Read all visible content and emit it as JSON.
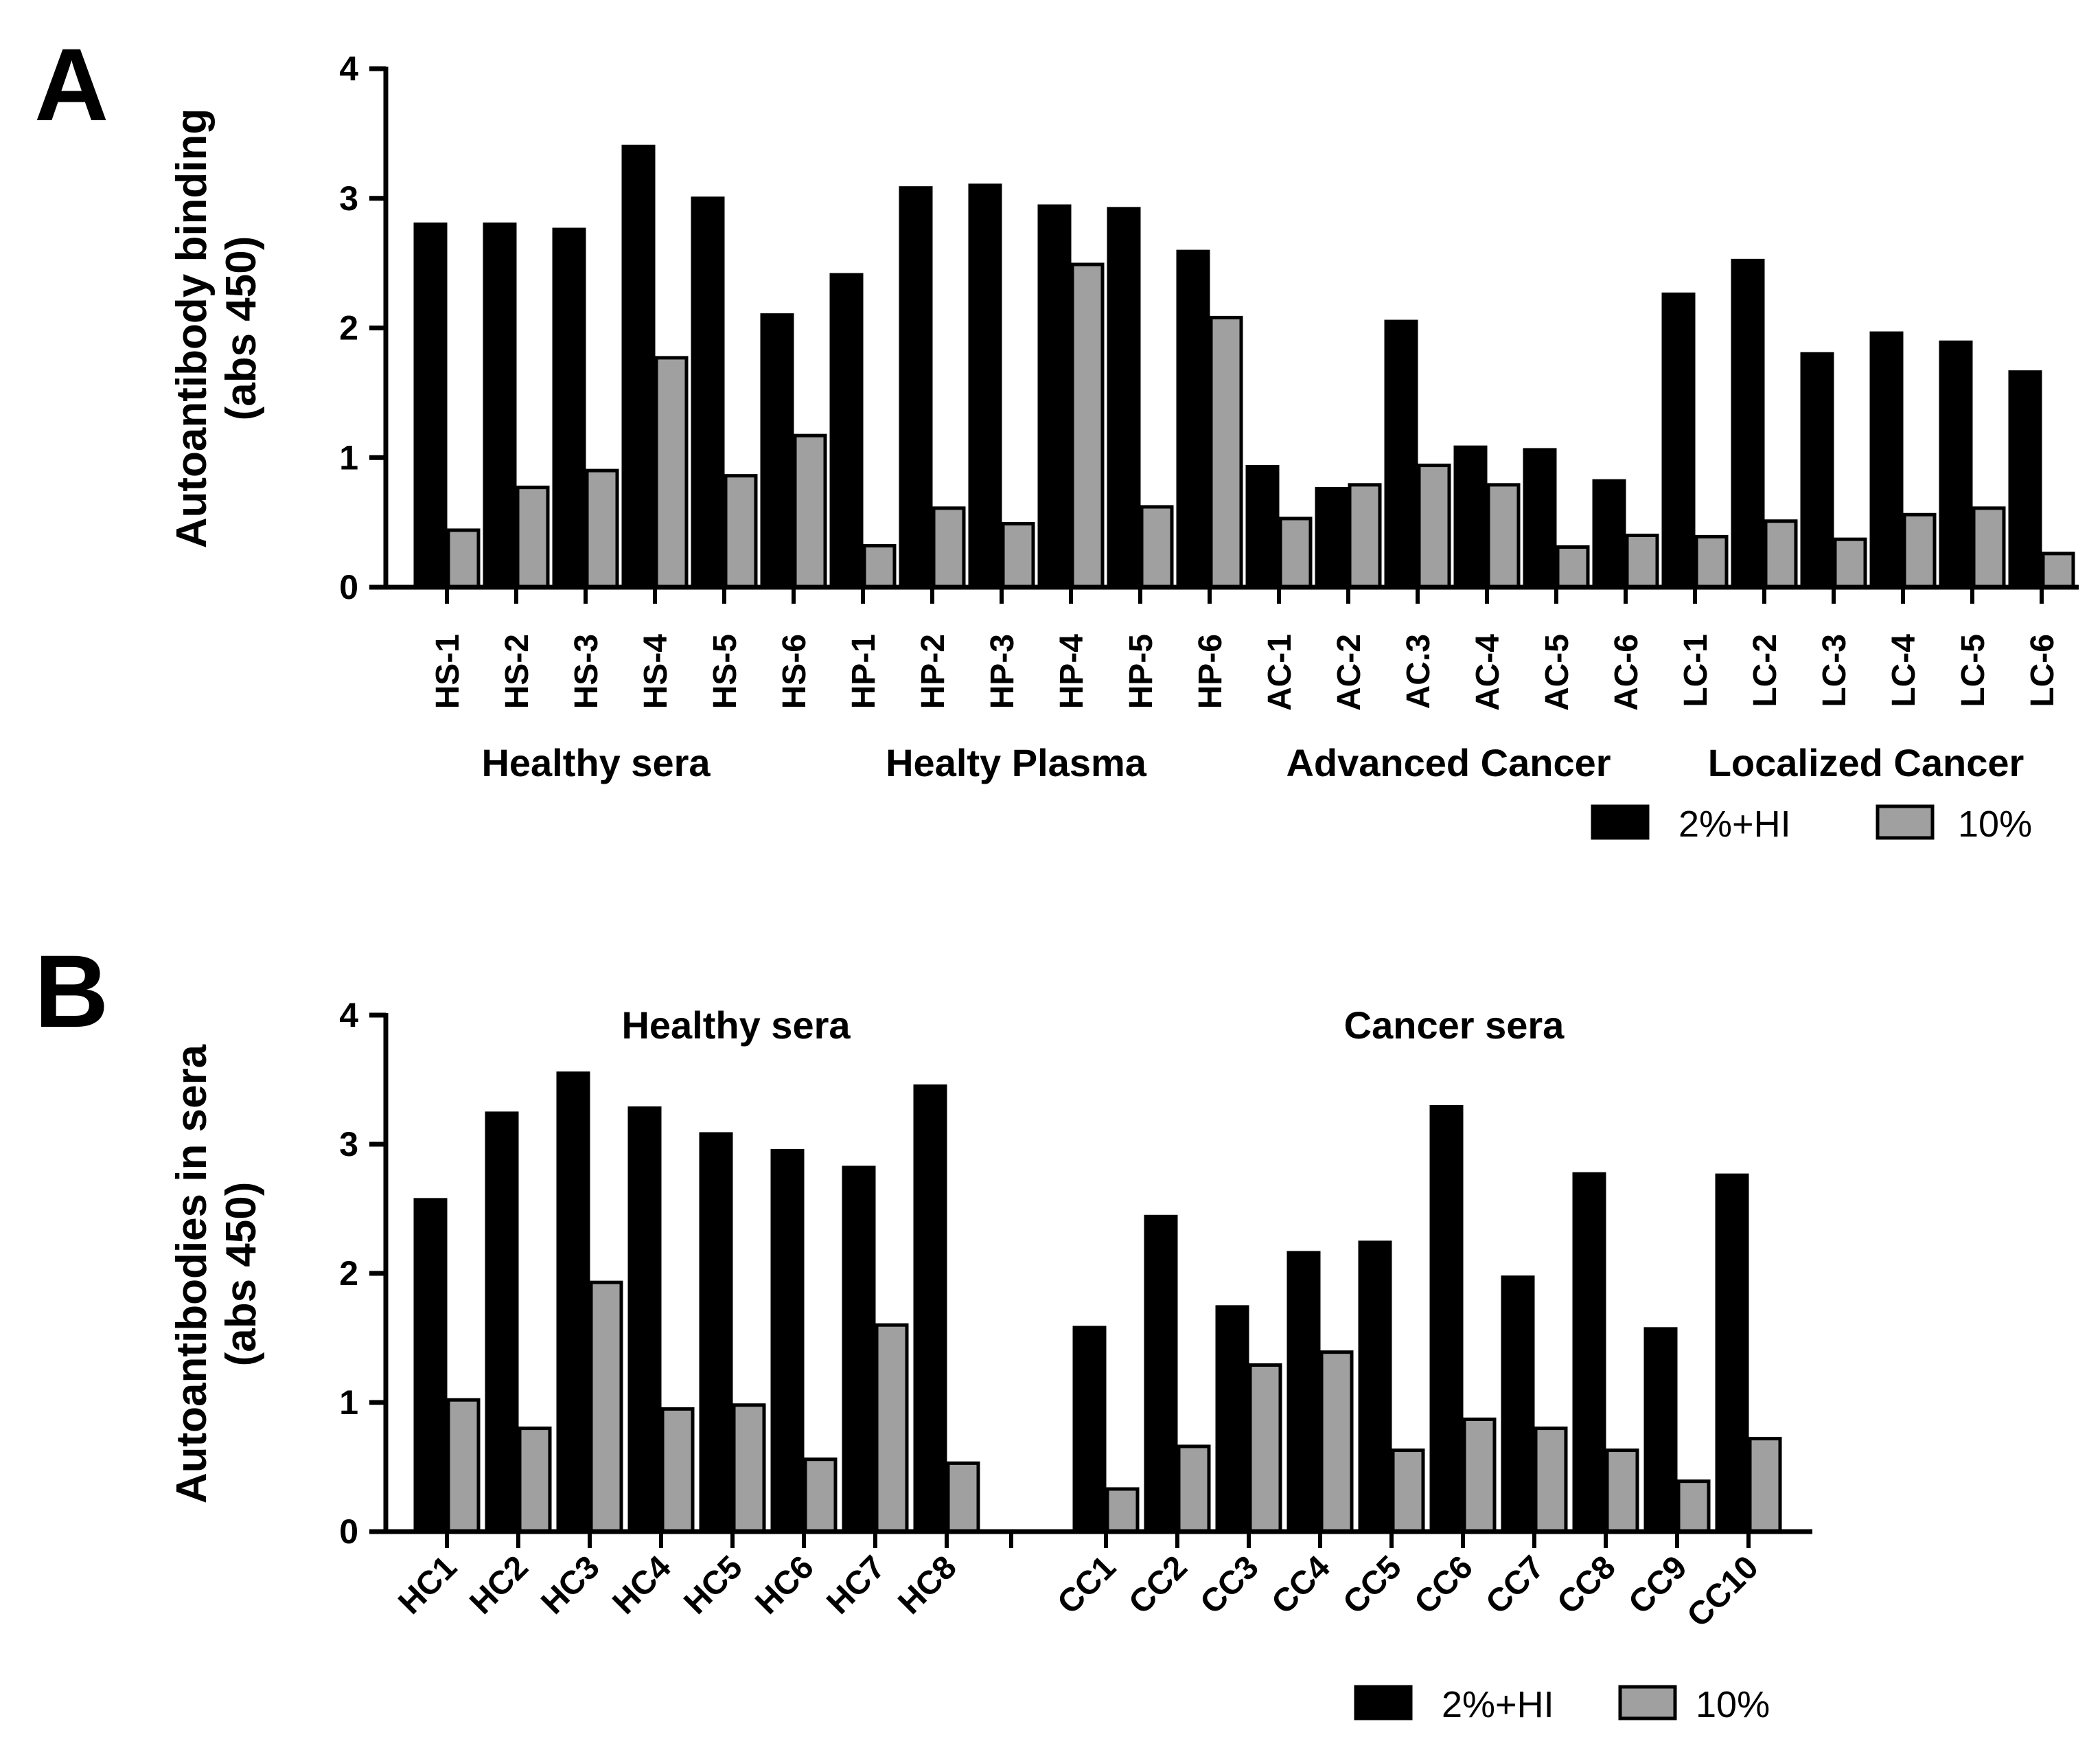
{
  "chart_data": [
    {
      "panel": "A",
      "type": "bar",
      "ylabel": [
        "Autoantibody binding",
        "(abs 450)"
      ],
      "ylim": [
        0,
        4
      ],
      "yticks": [
        0,
        1,
        2,
        3,
        4
      ],
      "categories": [
        "HS-1",
        "HS-2",
        "HS-3",
        "HS-4",
        "HS-5",
        "HS-6",
        "HP-1",
        "HP-2",
        "HP-3",
        "HP-4",
        "HP-5",
        "HP-6",
        "AC-1",
        "AC-2",
        "AC.3",
        "AC-4",
        "AC-5",
        "AC-6",
        "LC-1",
        "LC-2",
        "LC-3",
        "LC-4",
        "LC-5",
        "LC-6"
      ],
      "groups": [
        "Healthy sera",
        "Healty Plasma",
        "Advanced Cancer",
        "Localized Cancer"
      ],
      "series": [
        {
          "name": "2%+HI",
          "color": "#000000",
          "values": [
            2.8,
            2.8,
            2.76,
            3.4,
            3.0,
            2.1,
            2.41,
            3.08,
            3.1,
            2.94,
            2.92,
            2.59,
            0.93,
            0.76,
            2.05,
            1.08,
            1.06,
            0.82,
            2.26,
            2.52,
            1.8,
            1.96,
            1.89,
            1.66
          ]
        },
        {
          "name": "10%",
          "color": "#a0a0a0",
          "values": [
            0.44,
            0.77,
            0.9,
            1.77,
            0.86,
            1.17,
            0.32,
            0.61,
            0.49,
            2.49,
            0.62,
            2.08,
            0.53,
            0.79,
            0.94,
            0.79,
            0.31,
            0.4,
            0.39,
            0.51,
            0.37,
            0.56,
            0.61,
            0.26
          ]
        }
      ]
    },
    {
      "panel": "B",
      "type": "bar",
      "ylabel": [
        "Autoantibodies in sera",
        "(abs 450)"
      ],
      "ylim": [
        0,
        4
      ],
      "yticks": [
        0,
        1,
        2,
        3,
        4
      ],
      "categories": [
        "HC1",
        "HC2",
        "HC3",
        "HC4",
        "HC5",
        "HC6",
        "HC7",
        "HC8",
        "CC1",
        "CC2",
        "CC3",
        "CC4",
        "CC5",
        "CC6",
        "CC7",
        "CC8",
        "CC9",
        "CC10"
      ],
      "groups": [
        "Healthy sera",
        "Cancer sera"
      ],
      "series": [
        {
          "name": "2%+HI",
          "color": "#000000",
          "values": [
            2.57,
            3.24,
            3.55,
            3.28,
            3.08,
            2.95,
            2.82,
            3.45,
            1.58,
            2.44,
            1.74,
            2.16,
            2.24,
            3.29,
            1.97,
            2.77,
            1.57,
            2.76
          ]
        },
        {
          "name": "10%",
          "color": "#a0a0a0",
          "values": [
            1.02,
            0.8,
            1.93,
            0.95,
            0.98,
            0.56,
            1.6,
            0.53,
            0.33,
            0.66,
            1.29,
            1.39,
            0.63,
            0.87,
            0.8,
            0.63,
            0.39,
            0.72
          ]
        }
      ]
    }
  ]
}
